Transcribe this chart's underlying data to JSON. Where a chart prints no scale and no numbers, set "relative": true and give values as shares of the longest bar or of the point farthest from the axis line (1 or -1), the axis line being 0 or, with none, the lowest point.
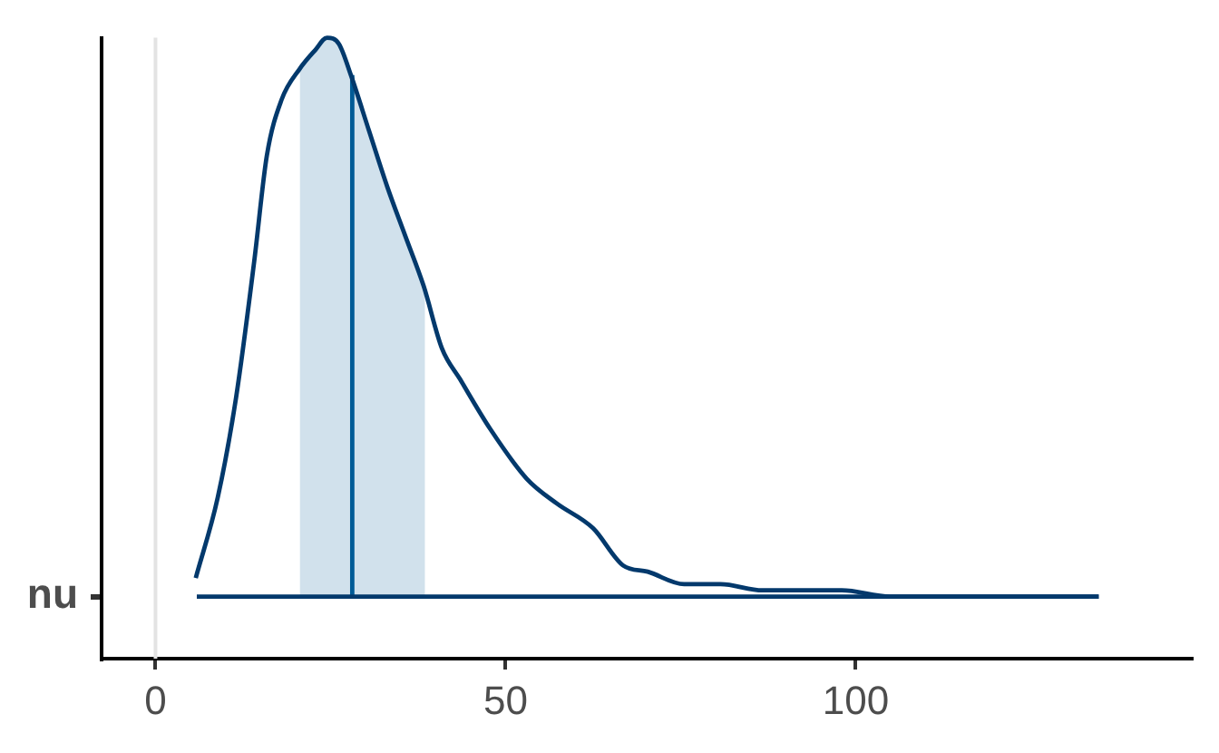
{
  "chart_data": {
    "type": "line",
    "relative": true,
    "xlim": [
      -7.7,
      148
    ],
    "xticks": [
      0,
      50,
      100
    ],
    "series": [
      {
        "type": "area",
        "color": "#d1e1ec",
        "x": [
          20.6,
          22.8,
          24.5,
          26.2,
          27.9,
          30.5,
          33.1,
          35.7,
          38.5
        ],
        "values": [
          0.95,
          0.98,
          1.0,
          0.99,
          0.94,
          0.85,
          0.76,
          0.68,
          0.59
        ]
      },
      {
        "name": "nu",
        "type": "line",
        "color": "#03396c",
        "x": [
          5.75,
          8.9,
          11.5,
          14.1,
          15.9,
          18.0,
          20.6,
          22.8,
          24.5,
          26.2,
          27.9,
          30.5,
          33.1,
          35.7,
          38.3,
          40.9,
          43.5,
          47.8,
          53.0,
          57.3,
          62.5,
          66.8,
          70.3,
          75.5,
          80.7,
          86.7,
          91.9,
          98.0,
          104.9,
          118.7,
          134.7
        ],
        "values": [
          0.13,
          0.26,
          0.42,
          0.64,
          0.81,
          0.9,
          0.95,
          0.98,
          1.0,
          0.99,
          0.94,
          0.85,
          0.76,
          0.68,
          0.6,
          0.5,
          0.45,
          0.37,
          0.29,
          0.25,
          0.21,
          0.15,
          0.14,
          0.12,
          0.12,
          0.11,
          0.11,
          0.11,
          0.1,
          0.1,
          0.1
        ]
      },
      {
        "type": "line",
        "color": "#03396c",
        "x": [
          5.9,
          134.7
        ],
        "values": [
          0.1,
          0.1
        ]
      },
      {
        "type": "line",
        "color": "#005b96",
        "x": [
          28.1,
          28.1
        ],
        "values": [
          0.1,
          0.94
        ]
      }
    ],
    "ref_lines": [
      {
        "axis": "x",
        "value": 0,
        "color": "#e3e3e3"
      }
    ],
    "grid": false,
    "legend": false
  }
}
